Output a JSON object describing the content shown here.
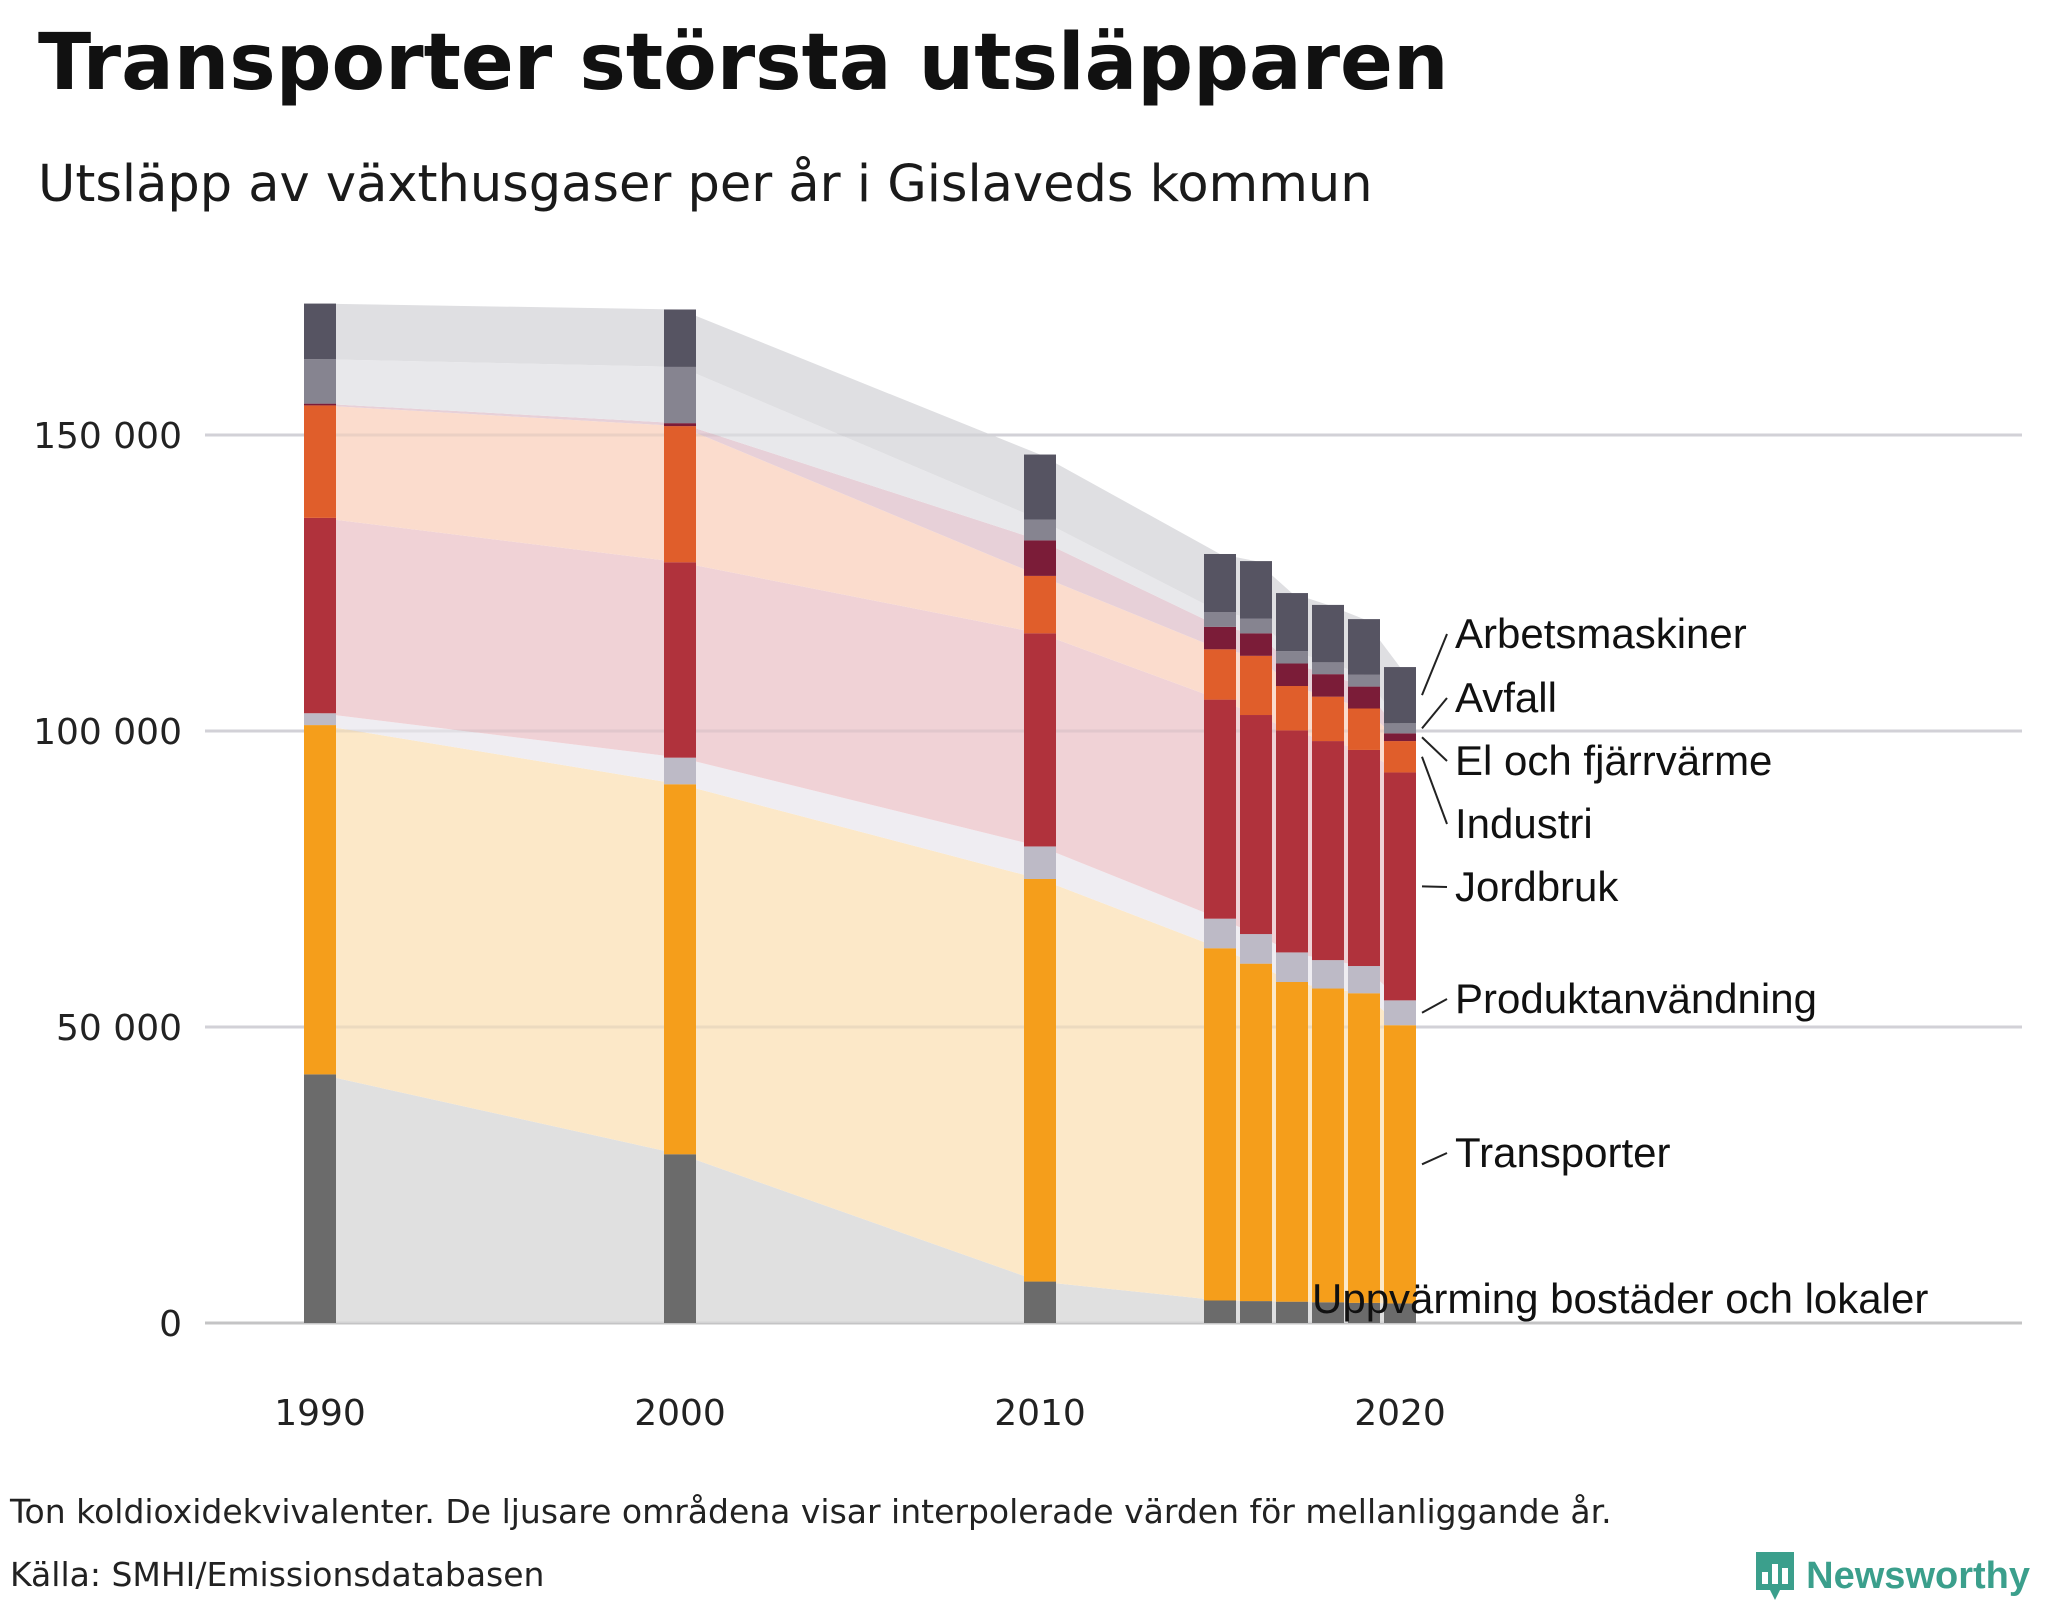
{
  "title": "Transporter största utsläpparen",
  "subtitle": "Utsläpp av växthusgaser per år i Gislaveds kommun",
  "note": "Ton koldioxidekvivalenter. De ljusare områdena visar interpolerade värden för mellanliggande år.",
  "source": "Källa: SMHI/Emissionsdatabasen",
  "brand": "Newsworthy",
  "chart_data": {
    "type": "bar",
    "stacked": true,
    "title": "Transporter största utsläpparen",
    "subtitle": "Utsläpp av växthusgaser per år i Gislaveds kommun",
    "xlabel": "",
    "ylabel": "Ton koldioxidekvivalenter",
    "categories": [
      1990,
      2000,
      2010,
      2015,
      2016,
      2017,
      2018,
      2019,
      2020
    ],
    "x_ticks": [
      1990,
      2000,
      2010,
      2020
    ],
    "y_ticks": [
      0,
      50000,
      100000,
      150000
    ],
    "y_tick_labels": [
      "0",
      "50 000",
      "100 000",
      "150 000"
    ],
    "ylim": [
      0,
      180000
    ],
    "interpolated_areas": true,
    "series": [
      {
        "name": "Uppvärming bostäder och lokaler",
        "color": "#6b6b6b",
        "area_color": "#e0e0e0",
        "values": [
          42000,
          28500,
          7000,
          3800,
          3700,
          3600,
          3500,
          3400,
          3300
        ]
      },
      {
        "name": "Transporter",
        "color": "#f59e1b",
        "area_color": "#fce8c8",
        "values": [
          59000,
          62500,
          68000,
          59500,
          57000,
          54000,
          53000,
          52300,
          47000
        ]
      },
      {
        "name": "Produktanvändning",
        "color": "#bdbac6",
        "area_color": "#efedf2",
        "values": [
          2000,
          4500,
          5500,
          5000,
          5000,
          5000,
          4800,
          4600,
          4200
        ]
      },
      {
        "name": "Jordbruk",
        "color": "#b0323c",
        "area_color": "#f0d2d6",
        "values": [
          33000,
          33000,
          36000,
          37000,
          37000,
          37500,
          37000,
          36500,
          38500
        ]
      },
      {
        "name": "Industri",
        "color": "#e05e2b",
        "area_color": "#fbdccd",
        "values": [
          19000,
          23000,
          9700,
          8500,
          10000,
          7500,
          7500,
          7000,
          5300
        ]
      },
      {
        "name": "El och fjärrvärme",
        "color": "#7b1c38",
        "area_color": "#e7d0d8",
        "values": [
          300,
          500,
          6000,
          3800,
          3800,
          3800,
          3800,
          3700,
          1300
        ]
      },
      {
        "name": "Avfall",
        "color": "#868490",
        "area_color": "#e8e8eb",
        "values": [
          7500,
          9500,
          3500,
          2500,
          2500,
          2100,
          2000,
          2000,
          1700
        ]
      },
      {
        "name": "Arbetsmaskiner",
        "color": "#565462",
        "area_color": "#dfdfe2",
        "values": [
          9400,
          9700,
          11000,
          9800,
          9700,
          9800,
          9700,
          9400,
          9500
        ]
      }
    ]
  }
}
